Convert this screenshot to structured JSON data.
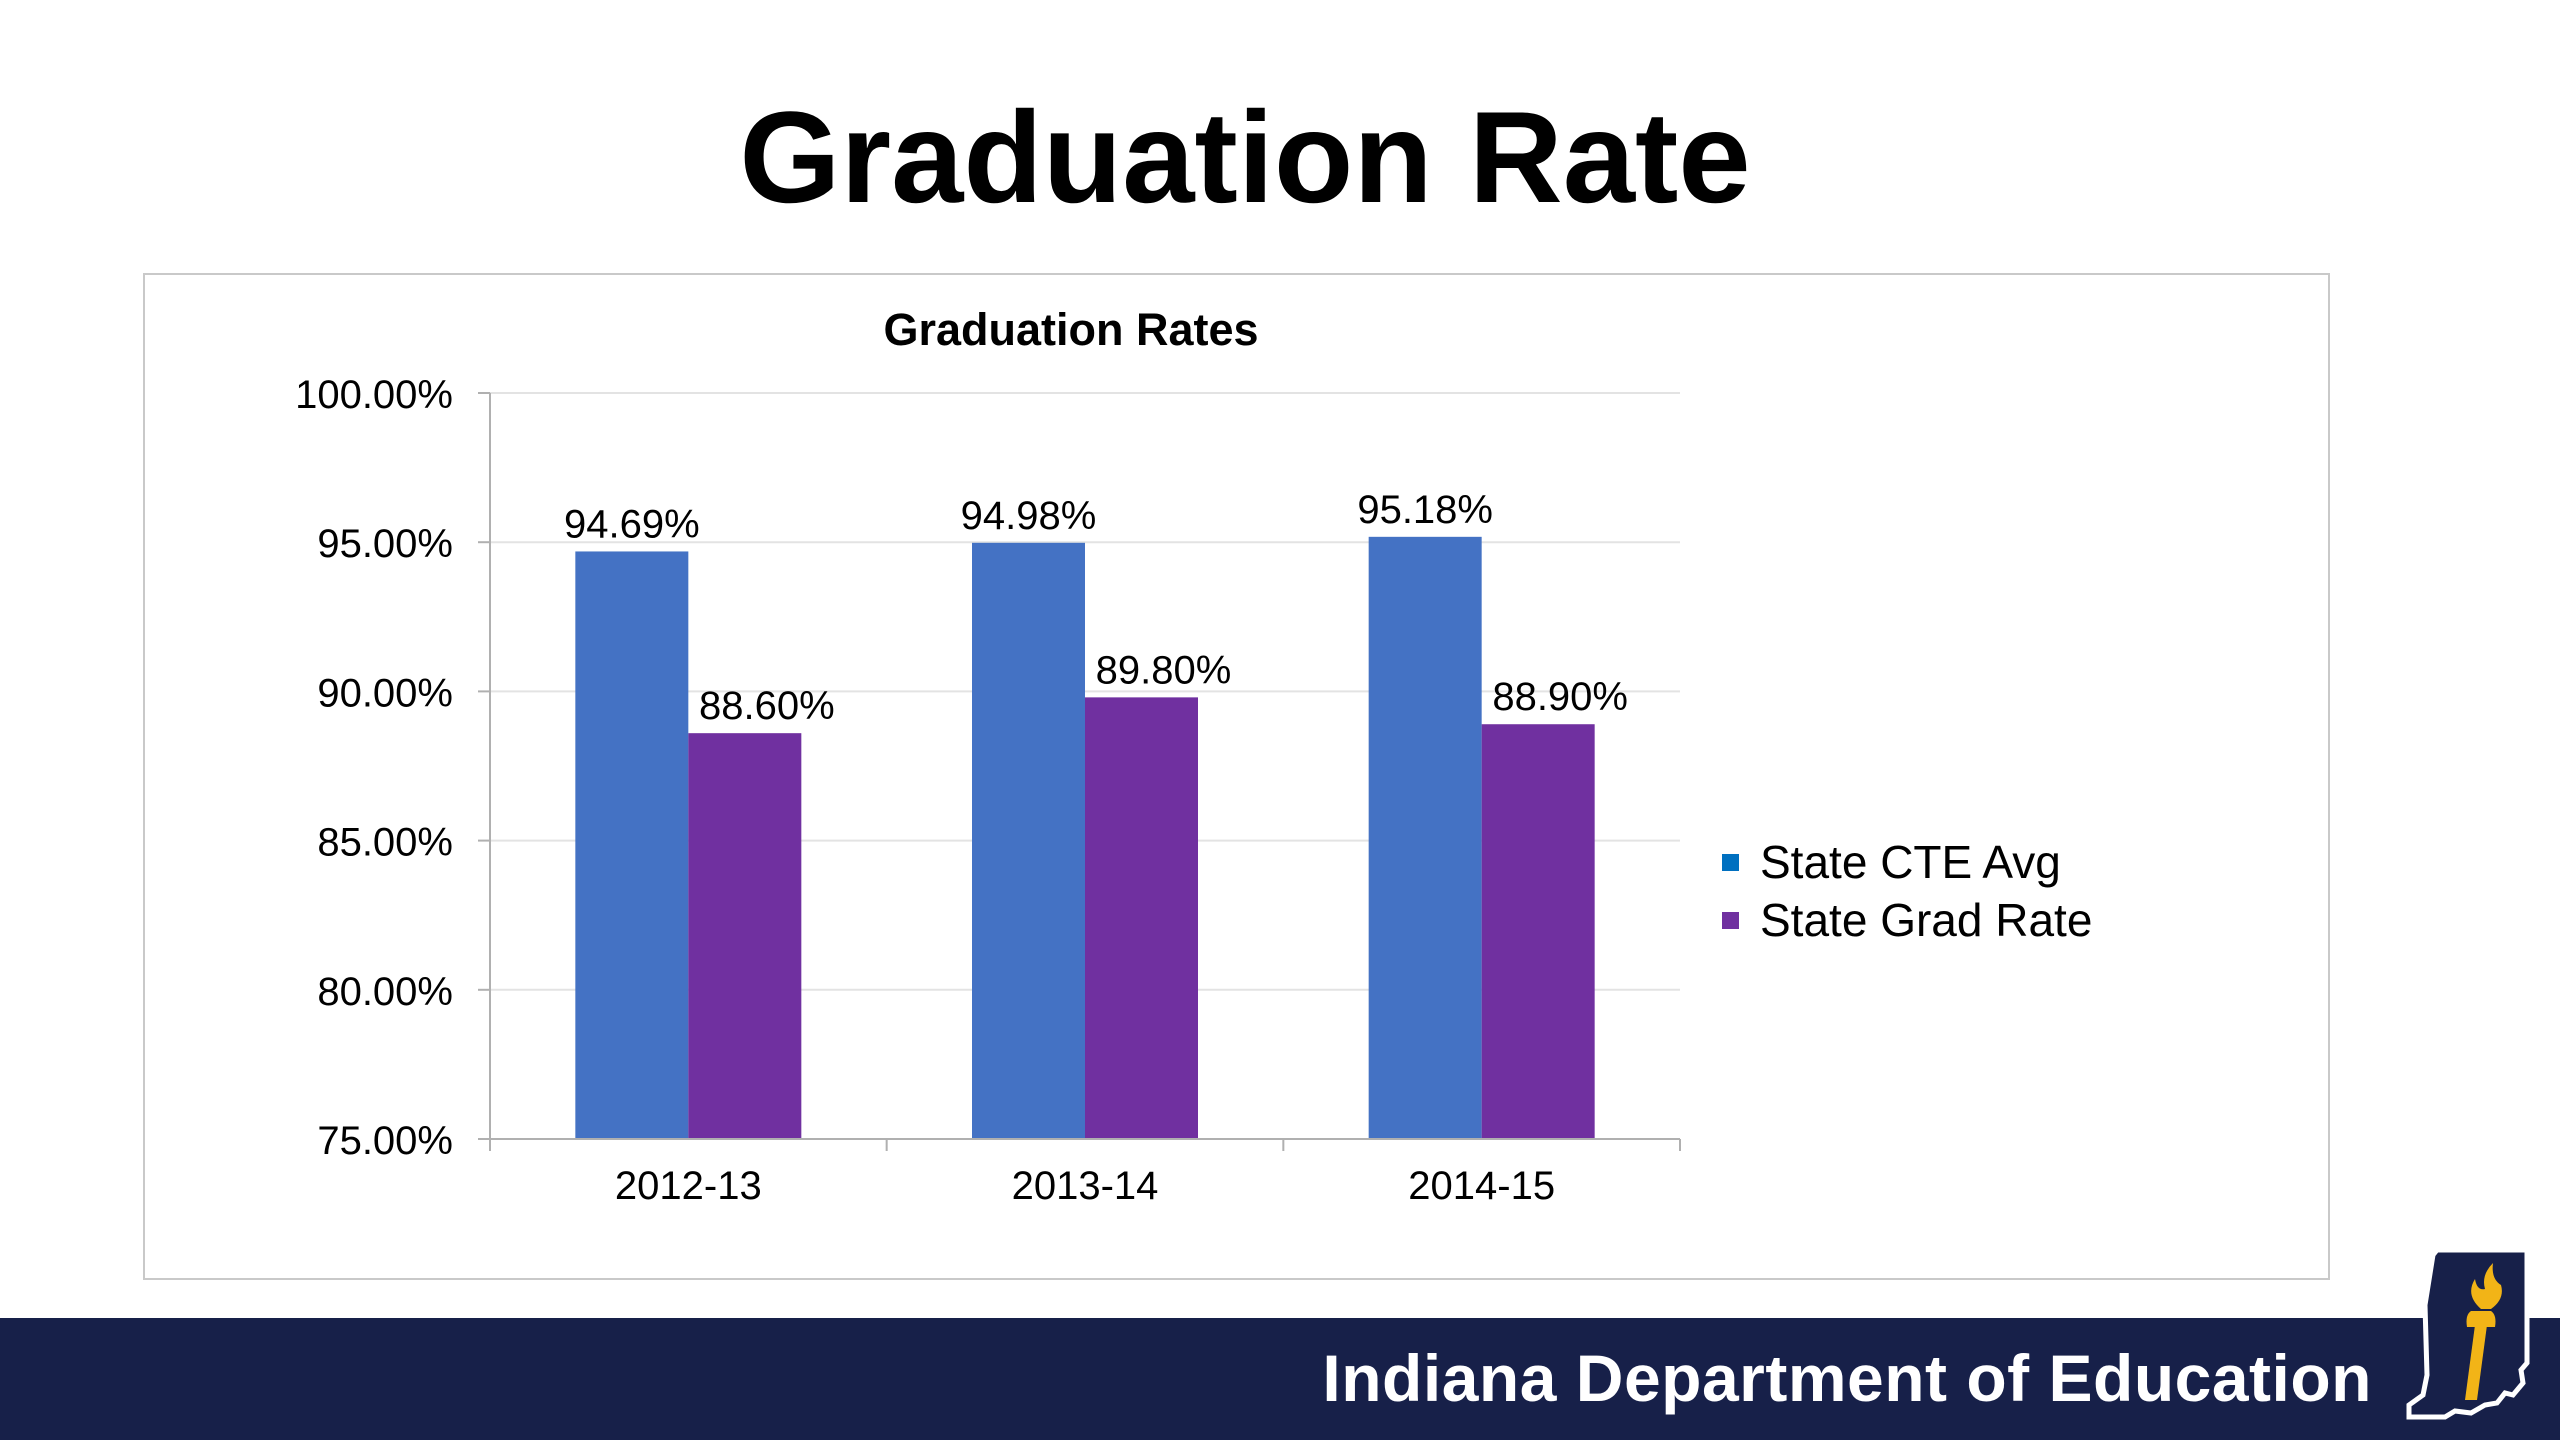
{
  "slide": {
    "title": "Graduation Rate",
    "footer_org": "Indiana Department of Education"
  },
  "colors": {
    "footer_bg": "#172049",
    "logo_gold": "#f2b417"
  },
  "chart_data": {
    "type": "bar",
    "title": "Graduation Rates",
    "xlabel": "",
    "ylabel": "",
    "categories": [
      "2012-13",
      "2013-14",
      "2014-15"
    ],
    "ylim": [
      75,
      100
    ],
    "yticks": [
      75,
      80,
      85,
      90,
      95,
      100
    ],
    "ytick_labels": [
      "75.00%",
      "80.00%",
      "85.00%",
      "90.00%",
      "95.00%",
      "100.00%"
    ],
    "grid": true,
    "legend_position": "right",
    "series": [
      {
        "name": "State CTE Avg",
        "color": "#4472c4",
        "legend_color": "#0070c0",
        "values": [
          94.69,
          94.98,
          95.18
        ],
        "labels": [
          "94.69%",
          "94.98%",
          "95.18%"
        ]
      },
      {
        "name": "State Grad Rate",
        "color": "#7030a0",
        "legend_color": "#7030a0",
        "values": [
          88.6,
          89.8,
          88.9
        ],
        "labels": [
          "88.60%",
          "89.80%",
          "88.90%"
        ]
      }
    ]
  }
}
